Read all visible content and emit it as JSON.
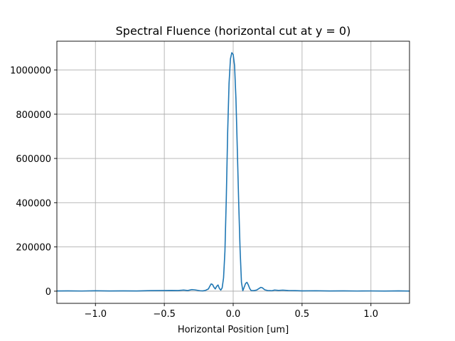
{
  "chart_data": {
    "type": "line",
    "title": "Spectral Fluence (horizontal cut at y = 0)",
    "xlabel": "Horizontal Position [um]",
    "ylabel": "",
    "xlim": [
      -1.28,
      1.28
    ],
    "ylim": [
      -55000,
      1130000
    ],
    "grid": true,
    "x_ticks": [
      {
        "value": -1.0,
        "label": "−1.0"
      },
      {
        "value": -0.5,
        "label": "−0.5"
      },
      {
        "value": 0.0,
        "label": "0.0"
      },
      {
        "value": 0.5,
        "label": "0.5"
      },
      {
        "value": 1.0,
        "label": "1.0"
      }
    ],
    "y_ticks": [
      {
        "value": 0,
        "label": "0"
      },
      {
        "value": 200000,
        "label": "200000"
      },
      {
        "value": 400000,
        "label": "400000"
      },
      {
        "value": 600000,
        "label": "600000"
      },
      {
        "value": 800000,
        "label": "800000"
      },
      {
        "value": 1000000,
        "label": "1000000"
      }
    ],
    "series": [
      {
        "color": "#1f77b4",
        "x": [
          -1.28,
          -1.2,
          -1.1,
          -1.0,
          -0.9,
          -0.8,
          -0.7,
          -0.6,
          -0.5,
          -0.45,
          -0.4,
          -0.36,
          -0.33,
          -0.3,
          -0.28,
          -0.26,
          -0.24,
          -0.22,
          -0.2,
          -0.18,
          -0.17,
          -0.16,
          -0.15,
          -0.14,
          -0.13,
          -0.12,
          -0.11,
          -0.1,
          -0.09,
          -0.08,
          -0.07,
          -0.06,
          -0.05,
          -0.04,
          -0.03,
          -0.02,
          -0.01,
          0.0,
          0.01,
          0.02,
          0.03,
          0.04,
          0.05,
          0.06,
          0.07,
          0.08,
          0.09,
          0.1,
          0.11,
          0.12,
          0.13,
          0.15,
          0.17,
          0.19,
          0.2,
          0.21,
          0.22,
          0.23,
          0.25,
          0.28,
          0.3,
          0.33,
          0.36,
          0.4,
          0.45,
          0.5,
          0.6,
          0.7,
          0.8,
          0.9,
          1.0,
          1.1,
          1.2,
          1.28
        ],
        "y": [
          1000,
          1500,
          800,
          2000,
          1000,
          1500,
          1000,
          2500,
          3000,
          3500,
          3000,
          5000,
          3000,
          7000,
          6000,
          4000,
          2000,
          1500,
          4000,
          10000,
          22000,
          33000,
          30000,
          18000,
          10000,
          22000,
          28000,
          12000,
          5000,
          15000,
          60000,
          180000,
          420000,
          720000,
          940000,
          1050000,
          1078000,
          1070000,
          1020000,
          870000,
          640000,
          400000,
          190000,
          40000,
          2000,
          18000,
          35000,
          40000,
          28000,
          12000,
          3000,
          2500,
          5000,
          13000,
          17000,
          16000,
          11000,
          6000,
          3000,
          2000,
          5000,
          3500,
          4500,
          3000,
          2500,
          1500,
          2000,
          1000,
          1500,
          800,
          1200,
          700,
          1500,
          500
        ]
      }
    ]
  }
}
